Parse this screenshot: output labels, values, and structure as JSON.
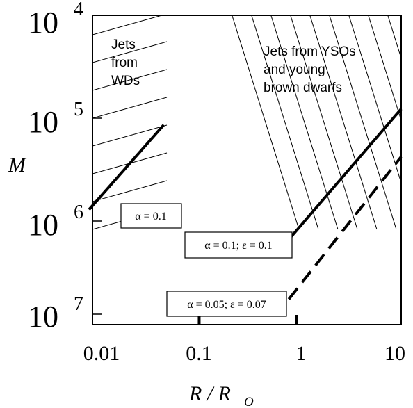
{
  "chart_data": {
    "type": "line",
    "xlabel_main": "R / R",
    "xlabel_sub": "O",
    "ylabel": "M",
    "x_scale": "log",
    "xlim": [
      0.0075,
      10
    ],
    "xticks": [
      {
        "value": 0.01,
        "label": "0.01"
      },
      {
        "value": 0.1,
        "label": "0.1"
      },
      {
        "value": 1,
        "label": "1"
      },
      {
        "value": 10,
        "label": "10"
      }
    ],
    "y_scale": "log",
    "ylim_exponent": [
      4,
      7.15
    ],
    "yticks": [
      {
        "base": "10",
        "exp": "4",
        "value": 4
      },
      {
        "base": "10",
        "exp": "5",
        "value": 5
      },
      {
        "base": "10",
        "exp": "6",
        "value": 6
      },
      {
        "base": "10",
        "exp": "7",
        "value": 7
      }
    ],
    "series": [
      {
        "label": "α = 0.1",
        "style": "solid",
        "x": [
          0.0075,
          0.042
        ],
        "y": [
          5.95,
          5.1
        ]
      },
      {
        "label": "α = 0.1; ε = 0.1",
        "style": "solid",
        "x": [
          0.75,
          10
        ],
        "y": [
          6.25,
          4.94
        ]
      },
      {
        "label": "α = 0.05; ε = 0.07",
        "style": "dashed",
        "x": [
          0.75,
          10
        ],
        "y": [
          6.85,
          5.42
        ]
      }
    ],
    "regions": [
      {
        "label_lines": [
          "Jets",
          "from",
          "WDs"
        ]
      },
      {
        "label_lines": [
          "Jets from YSOs",
          "and young",
          "brown dwarfs"
        ]
      }
    ],
    "marked_x": [
      0.095,
      0.9
    ]
  }
}
